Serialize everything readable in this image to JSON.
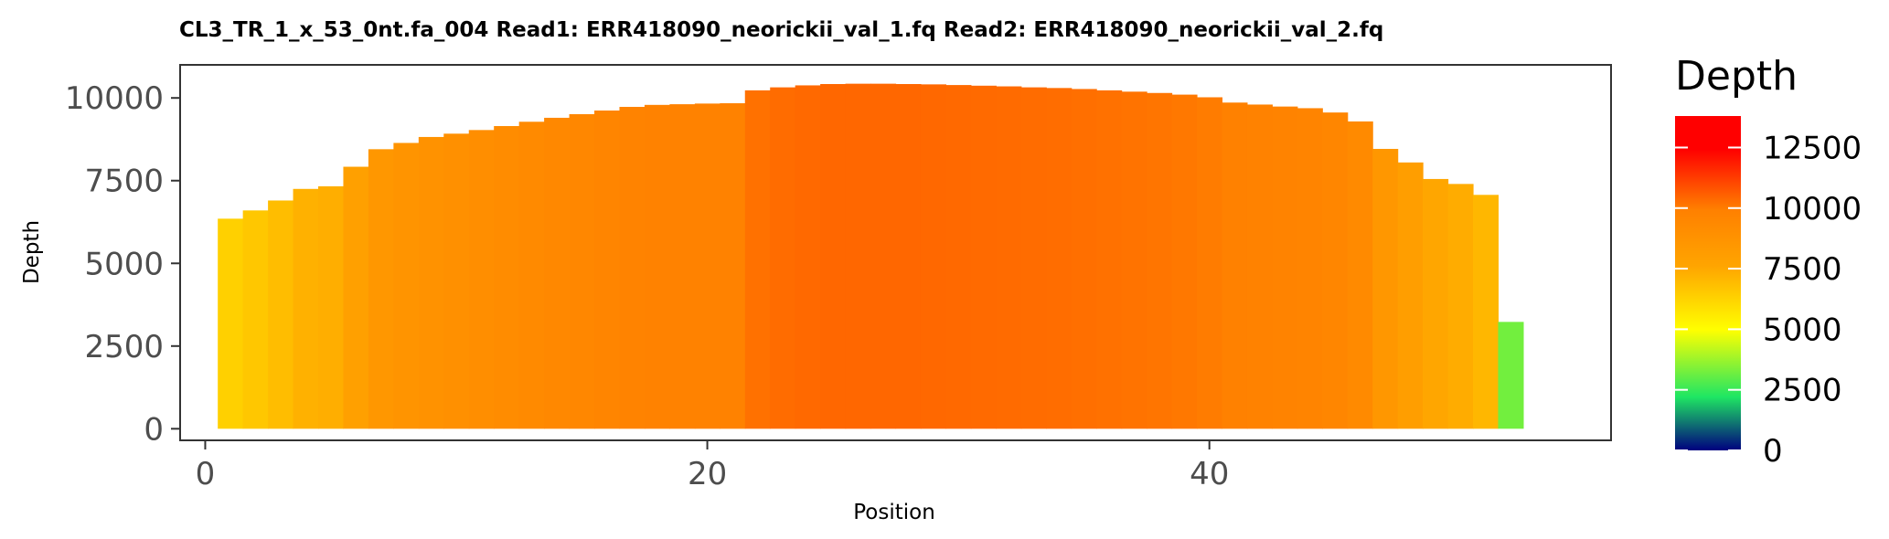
{
  "chart_data": {
    "type": "bar",
    "title": "CL3_TR_1_x_53_0nt.fa_004   Read1: ERR418090_neorickii_val_1.fq   Read2: ERR418090_neorickii_val_2.fq",
    "xlabel": "Position",
    "ylabel": "Depth",
    "x": [
      1,
      2,
      3,
      4,
      5,
      6,
      7,
      8,
      9,
      10,
      11,
      12,
      13,
      14,
      15,
      16,
      17,
      18,
      19,
      20,
      21,
      22,
      23,
      24,
      25,
      26,
      27,
      28,
      29,
      30,
      31,
      32,
      33,
      34,
      35,
      36,
      37,
      38,
      39,
      40,
      41,
      42,
      43,
      44,
      45,
      46,
      47,
      48,
      49,
      50,
      51,
      52,
      53
    ],
    "values": [
      6350,
      6600,
      6900,
      7250,
      7330,
      7920,
      8450,
      8640,
      8820,
      8920,
      9030,
      9150,
      9280,
      9400,
      9510,
      9620,
      9730,
      9790,
      9810,
      9830,
      9840,
      10230,
      10320,
      10380,
      10420,
      10430,
      10430,
      10420,
      10410,
      10390,
      10370,
      10350,
      10320,
      10300,
      10270,
      10230,
      10190,
      10150,
      10100,
      10020,
      9860,
      9800,
      9740,
      9690,
      9560,
      9290,
      8460,
      8050,
      7550,
      7400,
      7070,
      3230,
      null
    ],
    "xlim": [
      -1,
      56
    ],
    "ylim": [
      -350,
      11000
    ],
    "x_ticks": [
      "0",
      "20",
      "40"
    ],
    "y_ticks": [
      "0",
      "2500",
      "5000",
      "7500",
      "10000"
    ],
    "grid": false,
    "legend": {
      "title": "Depth",
      "placement": "right",
      "range": [
        0,
        13800
      ],
      "ticks": [
        "0",
        "2500",
        "5000",
        "7500",
        "10000",
        "12500"
      ],
      "colors": [
        "#00007f",
        "#1fe663",
        "#ffff00",
        "#ffa500",
        "#ff8000",
        "#ff0000"
      ]
    }
  }
}
